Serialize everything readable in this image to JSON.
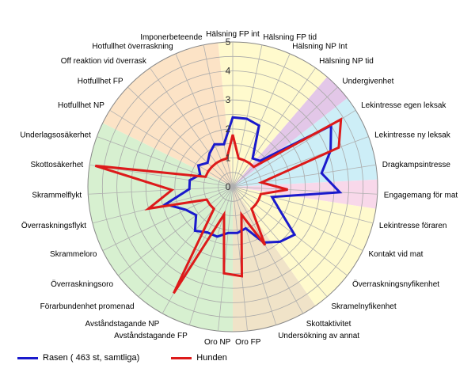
{
  "chart_data": {
    "type": "radar",
    "axes": [
      "Hälsning FP int",
      "Hälsning FP tid",
      "Hälsning NP Int",
      "Hälsning NP tid",
      "Undergivenhet",
      "Lekintresse egen leksak",
      "Lekintresse ny leksak",
      "Dragkampsintresse",
      "Engagemang för mat",
      "Lekintresse föraren",
      "Kontakt vid mat",
      "Överraskningsnyfikenhet",
      "Skramelnyfikenhet",
      "Skottaktivitet",
      "Undersökning av annat",
      "Oro FP",
      "Oro NP",
      "Avståndstagande FP",
      "Avståndstagande NP",
      "Förarbundenhet promenad",
      "Överraskningsoro",
      "Skrammeloro",
      "Överraskningsflykt",
      "Skrammelflykt",
      "Skottosäkerhet",
      "Underlagsosäkerhet",
      "Hotfullhet NP",
      "Hotfullhet FP",
      "Off reaktion vid överrask",
      "Hotfullhet överraskning",
      "Imponerbeteende"
    ],
    "rlim": [
      0,
      5
    ],
    "ticks": [
      "0",
      "1",
      "2",
      "3",
      "4",
      "5"
    ],
    "series": [
      {
        "name": "Rasen ( 463 st, samtliga)",
        "color": "#1a1acc",
        "values": [
          2.4,
          2.4,
          2.3,
          1.2,
          1.3,
          4.0,
          3.6,
          3.1,
          3.7,
          1.4,
          1.8,
          2.7,
          2.5,
          2.2,
          1.5,
          1.6,
          1.6,
          1.8,
          1.8,
          2.0,
          1.6,
          1.8,
          2.4,
          1.5,
          1.5,
          1.2,
          1.4,
          1.2,
          1.4,
          1.6,
          1.5
        ]
      },
      {
        "name": "Hunden",
        "color": "#dd1a1a",
        "values": [
          1.8,
          1.0,
          1.0,
          1.0,
          1.0,
          4.4,
          3.9,
          1.0,
          1.9,
          1.0,
          1.0,
          1.0,
          1.0,
          2.3,
          1.0,
          3.1,
          3.0,
          1.0,
          4.2,
          1.0,
          1.0,
          1.0,
          3.0,
          2.1,
          4.8,
          1.0,
          1.0,
          1.0,
          1.0,
          1.0,
          1.0
        ]
      }
    ],
    "sectors": [
      {
        "from": 0,
        "to": 4,
        "color": "#fffacd"
      },
      {
        "from": 4,
        "to": 5,
        "color": "#e3c7e8"
      },
      {
        "from": 5,
        "to": 8,
        "color": "#cdeef7"
      },
      {
        "from": 8,
        "to": 9,
        "color": "#f8d8ea"
      },
      {
        "from": 9,
        "to": 13,
        "color": "#fffacd"
      },
      {
        "from": 13,
        "to": 16,
        "color": "#f0e3c8"
      },
      {
        "from": 16,
        "to": 26,
        "color": "#d7f0d0"
      },
      {
        "from": 26,
        "to": 31,
        "color": "#fce3c6"
      }
    ],
    "grid": true,
    "legend_position": "bottom-left"
  }
}
